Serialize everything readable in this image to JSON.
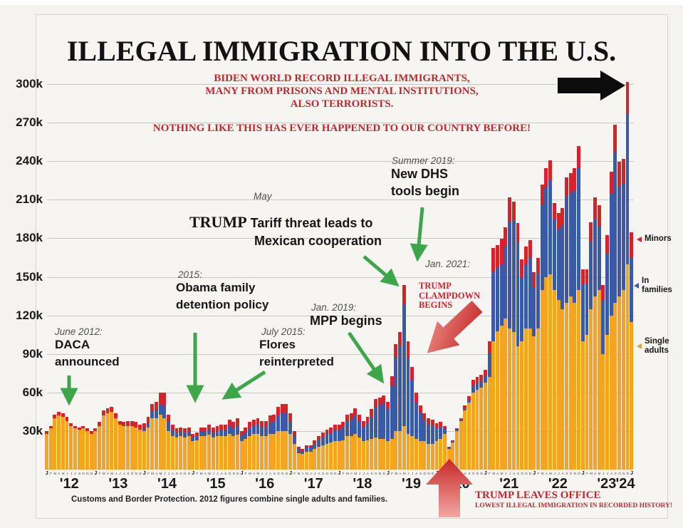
{
  "title": "ILLEGAL IMMIGRATION INTO THE U.S.",
  "header_warning": {
    "line1": "BIDEN WORLD RECORD ILLEGAL IMMIGRANTS,",
    "line2": "MANY FROM PRISONS AND MENTAL INSTITUTIONS,",
    "line3": "ALSO TERRORISTS.",
    "line4": "NOTHING LIKE THIS HAS EVER HAPPENED TO OUR COUNTRY BEFORE!"
  },
  "annotations": {
    "daca": {
      "date": "June 2012:",
      "text1": "DACA",
      "text2": "announced"
    },
    "obama": {
      "date": "2015:",
      "text1": "Obama family",
      "text2": "detention policy"
    },
    "flores": {
      "date": "July 2015:",
      "text1": "Flores",
      "text2": "reinterpreted"
    },
    "tariff": {
      "date": "May",
      "name": "TRUMP",
      "text1": " Tariff threat leads to",
      "text2": "Mexican cooperation"
    },
    "mpp": {
      "date": "Jan. 2019:",
      "text1": "MPP begins"
    },
    "dhs": {
      "date": "Summer 2019:",
      "text1": "New DHS",
      "text2": "tools begin"
    },
    "jan2021": {
      "date": "Jan. 2021:"
    },
    "clampdown": {
      "text": "TRUMP\nCLAMPDOWN\nBEGINS"
    },
    "leaves_office": {
      "title": "TRUMP LEAVES OFFICE",
      "sub": "LOWEST ILLEGAL IMMIGRATION IN RECORDED HISTORY!"
    }
  },
  "legend": {
    "minors": "Minors",
    "families": "In\nfamilies",
    "singles": "Single\nadults"
  },
  "footer": {
    "source": "Customs and Border Protection. 2012 figures combine single adults and families."
  },
  "colors": {
    "singles": "#f5a41f",
    "families": "#3a59a7",
    "minors": "#d6232a",
    "warning_red": "#c1272d",
    "green_arrow": "#3da64a",
    "background": "#f4f3f0",
    "gridline": "#c9c8c4"
  },
  "chart_data": {
    "type": "bar",
    "stacked": true,
    "title": "ILLEGAL IMMIGRATION INTO THE U.S.",
    "x_start": "Jan 2012",
    "x_end": "Jan 2024",
    "units": "thousands of people per month",
    "ylim": [
      0,
      310
    ],
    "grid": true,
    "legend_position": "right",
    "yticks": [
      30,
      60,
      90,
      120,
      150,
      180,
      210,
      240,
      270,
      300
    ],
    "ytick_labels": [
      "30k",
      "60k",
      "90k",
      "120k",
      "150k",
      "180k",
      "210k",
      "240k",
      "270k",
      "300k"
    ],
    "years": [
      "'12",
      "'13",
      "'14",
      "'15",
      "'16",
      "'17",
      "'18",
      "'19",
      "'20",
      "'21",
      "'22",
      "'23",
      "'24"
    ],
    "month_letters": [
      "J",
      "F",
      "M",
      "A",
      "M",
      "J",
      "J",
      "A",
      "S",
      "O",
      "N",
      "D"
    ],
    "n_months": 145,
    "series": [
      {
        "name": "Single adults",
        "color": "#f5a41f",
        "values": [
          28,
          32,
          40,
          42,
          41,
          38,
          34,
          32,
          31,
          32,
          30,
          28,
          30,
          34,
          42,
          44,
          45,
          40,
          35,
          34,
          34,
          34,
          33,
          31,
          30,
          33,
          40,
          40,
          43,
          40,
          30,
          26,
          25,
          26,
          25,
          26,
          22,
          23,
          26,
          26,
          27,
          25,
          26,
          26,
          26,
          28,
          26,
          27,
          22,
          24,
          26,
          28,
          28,
          26,
          26,
          28,
          28,
          30,
          30,
          30,
          28,
          20,
          13,
          12,
          14,
          14,
          16,
          18,
          19,
          20,
          21,
          22,
          22,
          23,
          26,
          26,
          28,
          25,
          22,
          23,
          24,
          25,
          24,
          24,
          22,
          24,
          30,
          30,
          34,
          28,
          26,
          24,
          22,
          22,
          20,
          20,
          22,
          24,
          28,
          16,
          21,
          30,
          38,
          46,
          52,
          60,
          62,
          64,
          68,
          72,
          100,
          108,
          112,
          118,
          110,
          107,
          96,
          100,
          110,
          110,
          104,
          110,
          140,
          150,
          152,
          140,
          132,
          125,
          130,
          135,
          130,
          140,
          100,
          105,
          125,
          135,
          140,
          90,
          105,
          120,
          130,
          135,
          140,
          160,
          115
        ]
      },
      {
        "name": "In families",
        "color": "#3a59a7",
        "values": [
          0,
          0,
          0,
          0,
          0,
          0,
          0,
          0,
          0,
          0,
          0,
          0,
          0,
          0,
          0,
          0,
          0,
          0,
          0,
          0,
          0,
          0,
          0,
          0,
          2,
          3,
          5,
          6,
          8,
          10,
          7,
          5,
          4,
          4,
          4,
          4,
          3,
          3,
          4,
          4,
          4,
          4,
          4,
          5,
          5,
          6,
          6,
          7,
          4,
          5,
          6,
          6,
          7,
          7,
          7,
          8,
          9,
          12,
          14,
          14,
          10,
          6,
          3,
          2,
          3,
          3,
          4,
          5,
          6,
          7,
          8,
          9,
          9,
          10,
          12,
          13,
          14,
          12,
          11,
          13,
          17,
          24,
          26,
          28,
          25,
          41,
          58,
          66,
          95,
          60,
          44,
          28,
          22,
          17,
          15,
          14,
          10,
          9,
          4,
          1,
          1,
          1,
          1,
          2,
          2,
          5,
          5,
          5,
          5,
          19,
          54,
          50,
          48,
          56,
          83,
          87,
          81,
          50,
          50,
          55,
          38,
          43,
          66,
          70,
          73,
          55,
          55,
          66,
          83,
          80,
          88,
          95,
          44,
          40,
          52,
          60,
          50,
          42,
          64,
          95,
          118,
          86,
          83,
          117,
          50
        ]
      },
      {
        "name": "Minors",
        "color": "#d6232a",
        "values": [
          2,
          2,
          3,
          3,
          3,
          3,
          2,
          2,
          2,
          2,
          2,
          2,
          2,
          3,
          4,
          4,
          4,
          4,
          3,
          3,
          4,
          4,
          4,
          4,
          4,
          5,
          6,
          7,
          9,
          10,
          6,
          4,
          3,
          3,
          3,
          3,
          3,
          3,
          3,
          3,
          4,
          4,
          4,
          4,
          4,
          5,
          5,
          6,
          4,
          4,
          5,
          5,
          5,
          5,
          5,
          6,
          6,
          7,
          7,
          7,
          6,
          4,
          2,
          2,
          2,
          2,
          3,
          3,
          4,
          4,
          4,
          4,
          4,
          4,
          5,
          5,
          6,
          6,
          5,
          5,
          6,
          6,
          6,
          6,
          6,
          8,
          10,
          11,
          15,
          12,
          10,
          8,
          6,
          5,
          5,
          5,
          4,
          4,
          2,
          1,
          1,
          1,
          1,
          2,
          3,
          5,
          5,
          5,
          5,
          9,
          19,
          17,
          20,
          15,
          19,
          15,
          15,
          14,
          14,
          14,
          12,
          12,
          16,
          15,
          16,
          13,
          13,
          13,
          15,
          16,
          17,
          17,
          12,
          11,
          16,
          17,
          16,
          12,
          14,
          17,
          21,
          19,
          19,
          25,
          20
        ]
      }
    ]
  }
}
